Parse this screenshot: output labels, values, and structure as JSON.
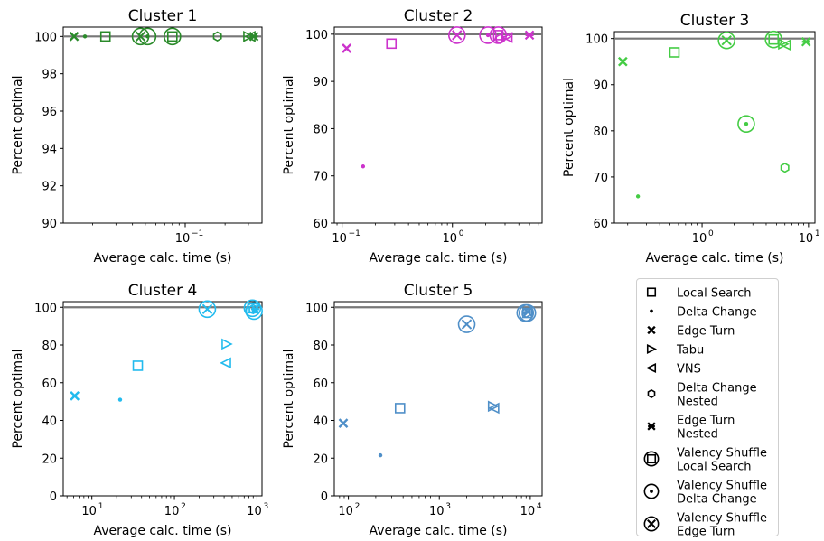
{
  "chart_data": [
    {
      "type": "scatter",
      "title": "Cluster 1",
      "xlabel": "Average calc. time (s)",
      "ylabel": "Percent optimal",
      "xscale": "log",
      "xlim": [
        0.012,
        0.38
      ],
      "ylim": [
        90,
        100.5
      ],
      "xticks": [
        {
          "value": 0.1,
          "label": "10",
          "exp": "−1"
        }
      ],
      "yticks": [
        90,
        92,
        94,
        96,
        98,
        100
      ],
      "reference_line": 100,
      "color": "#2a8a2a",
      "series": [
        {
          "name": "Local Search",
          "x": 0.025,
          "y": 100
        },
        {
          "name": "Delta Change",
          "x": 0.0175,
          "y": 100
        },
        {
          "name": "Edge Turn",
          "x": 0.0145,
          "y": 100
        },
        {
          "name": "Tabu",
          "x": 0.3,
          "y": 100
        },
        {
          "name": "VNS",
          "x": 0.31,
          "y": 100
        },
        {
          "name": "Delta Change Nested",
          "x": 0.175,
          "y": 100
        },
        {
          "name": "Edge Turn Nested",
          "x": 0.33,
          "y": 100
        },
        {
          "name": "Valency Shuffle Local Search",
          "x": 0.08,
          "y": 100
        },
        {
          "name": "Valency Shuffle Delta Change",
          "x": 0.052,
          "y": 100
        },
        {
          "name": "Valency Shuffle Edge Turn",
          "x": 0.046,
          "y": 100
        }
      ]
    },
    {
      "type": "scatter",
      "title": "Cluster 2",
      "xlabel": "Average calc. time (s)",
      "ylabel": "Percent optimal",
      "xscale": "log",
      "xlim": [
        0.085,
        6.5
      ],
      "ylim": [
        60,
        101.5
      ],
      "xticks": [
        {
          "value": 0.1,
          "label": "10",
          "exp": "−1"
        },
        {
          "value": 1,
          "label": "10",
          "exp": "0"
        }
      ],
      "yticks": [
        60,
        70,
        80,
        90,
        100
      ],
      "reference_line": 100,
      "color": "#cc33cc",
      "series": [
        {
          "name": "Local Search",
          "x": 0.28,
          "y": 98
        },
        {
          "name": "Delta Change",
          "x": 0.155,
          "y": 72
        },
        {
          "name": "Edge Turn",
          "x": 0.11,
          "y": 97
        },
        {
          "name": "Tabu",
          "x": 3.1,
          "y": 99.5
        },
        {
          "name": "VNS",
          "x": 3.15,
          "y": 99.3
        },
        {
          "name": "Delta Change Nested",
          "x": 2.7,
          "y": 99
        },
        {
          "name": "Edge Turn Nested",
          "x": 5.0,
          "y": 99.8
        },
        {
          "name": "Valency Shuffle Local Search",
          "x": 2.6,
          "y": 99.8
        },
        {
          "name": "Valency Shuffle Delta Change",
          "x": 2.1,
          "y": 99.8
        },
        {
          "name": "Valency Shuffle Edge Turn",
          "x": 1.1,
          "y": 99.8
        }
      ]
    },
    {
      "type": "scatter",
      "title": "Cluster 3",
      "xlabel": "Average calc. time (s)",
      "ylabel": "Percent optimal",
      "xscale": "log",
      "xlim": [
        0.15,
        11.5
      ],
      "ylim": [
        60,
        101.5
      ],
      "xticks": [
        {
          "value": 1,
          "label": "10",
          "exp": "0"
        },
        {
          "value": 10,
          "label": "10",
          "exp": "1"
        }
      ],
      "yticks": [
        60,
        70,
        80,
        90,
        100
      ],
      "reference_line": 100,
      "color": "#44cc44",
      "series": [
        {
          "name": "Local Search",
          "x": 0.55,
          "y": 97
        },
        {
          "name": "Delta Change",
          "x": 0.25,
          "y": 65.8
        },
        {
          "name": "Edge Turn",
          "x": 0.18,
          "y": 95
        },
        {
          "name": "Tabu",
          "x": 5.8,
          "y": 98.8
        },
        {
          "name": "VNS",
          "x": 6.1,
          "y": 98.6
        },
        {
          "name": "Delta Change Nested",
          "x": 6.0,
          "y": 72
        },
        {
          "name": "Edge Turn Nested",
          "x": 9.5,
          "y": 99.3
        },
        {
          "name": "Valency Shuffle Local Search",
          "x": 4.7,
          "y": 99.8
        },
        {
          "name": "Valency Shuffle Delta Change",
          "x": 2.6,
          "y": 81.5
        },
        {
          "name": "Valency Shuffle Edge Turn",
          "x": 1.7,
          "y": 99.6
        }
      ]
    },
    {
      "type": "scatter",
      "title": "Cluster 4",
      "xlabel": "Average calc. time (s)",
      "ylabel": "Percent optimal",
      "xscale": "log",
      "xlim": [
        4.5,
        1150
      ],
      "ylim": [
        0,
        103
      ],
      "xticks": [
        {
          "value": 10,
          "label": "10",
          "exp": "1"
        },
        {
          "value": 100,
          "label": "10",
          "exp": "2"
        },
        {
          "value": 1000,
          "label": "10",
          "exp": "3"
        }
      ],
      "yticks": [
        0,
        20,
        40,
        60,
        80,
        100
      ],
      "reference_line": 100,
      "color": "#22bbee",
      "series": [
        {
          "name": "Local Search",
          "x": 36,
          "y": 69
        },
        {
          "name": "Delta Change",
          "x": 22,
          "y": 51
        },
        {
          "name": "Edge Turn",
          "x": 6.2,
          "y": 53
        },
        {
          "name": "Tabu",
          "x": 430,
          "y": 80.5
        },
        {
          "name": "VNS",
          "x": 420,
          "y": 70.5
        },
        {
          "name": "Delta Change Nested",
          "x": 900,
          "y": 99
        },
        {
          "name": "Edge Turn Nested",
          "x": 950,
          "y": 99
        },
        {
          "name": "Valency Shuffle Local Search",
          "x": 880,
          "y": 99.5
        },
        {
          "name": "Valency Shuffle Delta Change",
          "x": 920,
          "y": 98
        },
        {
          "name": "Valency Shuffle Edge Turn",
          "x": 250,
          "y": 99
        }
      ]
    },
    {
      "type": "scatter",
      "title": "Cluster 5",
      "xlabel": "Average calc. time (s)",
      "ylabel": "Percent optimal",
      "xscale": "log",
      "xlim": [
        70,
        13500
      ],
      "ylim": [
        0,
        103
      ],
      "xticks": [
        {
          "value": 100,
          "label": "10",
          "exp": "2"
        },
        {
          "value": 1000,
          "label": "10",
          "exp": "3"
        },
        {
          "value": 10000,
          "label": "10",
          "exp": "4"
        }
      ],
      "yticks": [
        0,
        20,
        40,
        60,
        80,
        100
      ],
      "reference_line": 100,
      "color": "#4f8fc8",
      "series": [
        {
          "name": "Local Search",
          "x": 370,
          "y": 46.5
        },
        {
          "name": "Delta Change",
          "x": 225,
          "y": 21.5
        },
        {
          "name": "Edge Turn",
          "x": 88,
          "y": 38.5
        },
        {
          "name": "Tabu",
          "x": 3900,
          "y": 47.5
        },
        {
          "name": "VNS",
          "x": 4000,
          "y": 46.5
        },
        {
          "name": "Delta Change Nested",
          "x": 9000,
          "y": 97
        },
        {
          "name": "Edge Turn Nested",
          "x": 9400,
          "y": 97.5
        },
        {
          "name": "Valency Shuffle Local Search",
          "x": 9300,
          "y": 97
        },
        {
          "name": "Valency Shuffle Delta Change",
          "x": 8800,
          "y": 97
        },
        {
          "name": "Valency Shuffle Edge Turn",
          "x": 2000,
          "y": 91
        }
      ]
    }
  ],
  "legend": {
    "placement": "bottom-right",
    "entries": [
      {
        "marker": "square-icon",
        "lines": [
          "Local Search"
        ]
      },
      {
        "marker": "dot-icon",
        "lines": [
          "Delta Change"
        ]
      },
      {
        "marker": "x-icon",
        "lines": [
          "Edge Turn"
        ]
      },
      {
        "marker": "triangle-right-icon",
        "lines": [
          "Tabu"
        ]
      },
      {
        "marker": "triangle-left-icon",
        "lines": [
          "VNS"
        ]
      },
      {
        "marker": "hexagon-icon",
        "lines": [
          "Delta Change",
          "Nested"
        ]
      },
      {
        "marker": "star-x-icon",
        "lines": [
          "Edge Turn",
          "Nested"
        ]
      },
      {
        "marker": "circled-square-icon",
        "lines": [
          "Valency Shuffle",
          "Local Search"
        ]
      },
      {
        "marker": "circled-dot-icon",
        "lines": [
          "Valency Shuffle",
          "Delta Change"
        ]
      },
      {
        "marker": "circled-x-icon",
        "lines": [
          "Valency Shuffle",
          "Edge Turn"
        ]
      }
    ]
  }
}
